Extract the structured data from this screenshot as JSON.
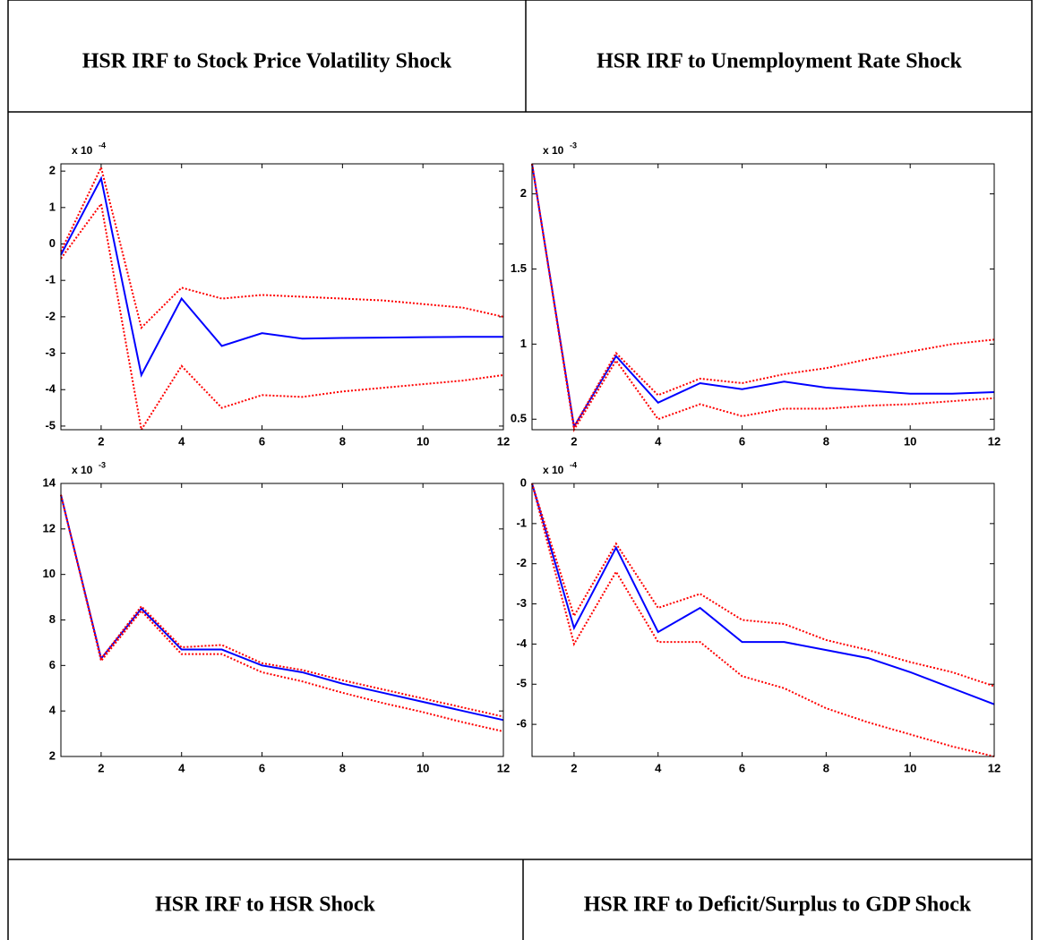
{
  "table": {
    "top_headers": [
      "HSR IRF to Stock Price Volatility Shock",
      "HSR IRF to Unemployment Rate Shock"
    ],
    "bottom_headers": [
      "HSR IRF to HSR Shock",
      "HSR IRF to Deficit/Surplus to GDP Shock"
    ]
  },
  "chart_data": [
    {
      "type": "line",
      "y_scale_base": "x 10",
      "y_scale_exponent": "-4",
      "x": [
        1,
        2,
        3,
        4,
        5,
        6,
        7,
        8,
        9,
        10,
        11,
        12
      ],
      "xlim": [
        1,
        12
      ],
      "xticks": [
        2,
        4,
        6,
        8,
        10,
        12
      ],
      "ylim": [
        -5.1,
        2.2
      ],
      "yticks": [
        -5,
        -4,
        -3,
        -2,
        -1,
        0,
        1,
        2
      ],
      "series": [
        {
          "color": "#0000ff",
          "style": "solid",
          "values": [
            -0.3,
            1.8,
            -3.6,
            -1.5,
            -2.8,
            -2.45,
            -2.6,
            -2.58,
            -2.57,
            -2.56,
            -2.55,
            -2.55
          ]
        },
        {
          "color": "#ff0000",
          "style": "dotted",
          "values": [
            -0.2,
            2.1,
            -2.3,
            -1.2,
            -1.5,
            -1.4,
            -1.45,
            -1.5,
            -1.55,
            -1.65,
            -1.75,
            -2.0
          ]
        },
        {
          "color": "#ff0000",
          "style": "dotted",
          "values": [
            -0.4,
            1.1,
            -5.1,
            -3.35,
            -4.5,
            -4.15,
            -4.2,
            -4.05,
            -3.95,
            -3.85,
            -3.75,
            -3.6
          ]
        }
      ]
    },
    {
      "type": "line",
      "y_scale_base": "x 10",
      "y_scale_exponent": "-3",
      "x": [
        1,
        2,
        3,
        4,
        5,
        6,
        7,
        8,
        9,
        10,
        11,
        12
      ],
      "xlim": [
        1,
        12
      ],
      "xticks": [
        2,
        4,
        6,
        8,
        10,
        12
      ],
      "ylim": [
        0.43,
        2.2
      ],
      "yticks": [
        0.5,
        1,
        1.5,
        2
      ],
      "series": [
        {
          "color": "#0000ff",
          "style": "solid",
          "values": [
            2.2,
            0.45,
            0.92,
            0.61,
            0.74,
            0.7,
            0.75,
            0.71,
            0.69,
            0.67,
            0.67,
            0.68
          ]
        },
        {
          "color": "#ff0000",
          "style": "dotted",
          "values": [
            2.2,
            0.45,
            0.94,
            0.66,
            0.77,
            0.74,
            0.8,
            0.84,
            0.9,
            0.95,
            1.0,
            1.03
          ]
        },
        {
          "color": "#ff0000",
          "style": "dotted",
          "values": [
            2.2,
            0.43,
            0.89,
            0.5,
            0.6,
            0.52,
            0.57,
            0.57,
            0.59,
            0.6,
            0.62,
            0.64
          ]
        }
      ]
    },
    {
      "type": "line",
      "y_scale_base": "x 10",
      "y_scale_exponent": "-3",
      "x": [
        1,
        2,
        3,
        4,
        5,
        6,
        7,
        8,
        9,
        10,
        11,
        12
      ],
      "xlim": [
        1,
        12
      ],
      "xticks": [
        2,
        4,
        6,
        8,
        10,
        12
      ],
      "ylim": [
        2,
        14
      ],
      "yticks": [
        2,
        4,
        6,
        8,
        10,
        12,
        14
      ],
      "series": [
        {
          "color": "#0000ff",
          "style": "solid",
          "values": [
            13.5,
            6.3,
            8.5,
            6.7,
            6.7,
            6.0,
            5.7,
            5.2,
            4.8,
            4.4,
            4.0,
            3.6
          ]
        },
        {
          "color": "#ff0000",
          "style": "dotted",
          "values": [
            13.5,
            6.3,
            8.6,
            6.8,
            6.9,
            6.1,
            5.8,
            5.35,
            4.95,
            4.55,
            4.15,
            3.75
          ]
        },
        {
          "color": "#ff0000",
          "style": "dotted",
          "values": [
            13.5,
            6.2,
            8.4,
            6.5,
            6.5,
            5.7,
            5.3,
            4.8,
            4.35,
            3.95,
            3.5,
            3.1
          ]
        }
      ]
    },
    {
      "type": "line",
      "y_scale_base": "x 10",
      "y_scale_exponent": "-4",
      "x": [
        1,
        2,
        3,
        4,
        5,
        6,
        7,
        8,
        9,
        10,
        11,
        12
      ],
      "xlim": [
        1,
        12
      ],
      "xticks": [
        2,
        4,
        6,
        8,
        10,
        12
      ],
      "ylim": [
        -6.8,
        0
      ],
      "yticks": [
        -6,
        -5,
        -4,
        -3,
        -2,
        -1,
        0
      ],
      "series": [
        {
          "color": "#0000ff",
          "style": "solid",
          "values": [
            0,
            -3.6,
            -1.6,
            -3.7,
            -3.1,
            -3.95,
            -3.95,
            -4.15,
            -4.35,
            -4.7,
            -5.1,
            -5.5
          ]
        },
        {
          "color": "#ff0000",
          "style": "dotted",
          "values": [
            0,
            -3.3,
            -1.5,
            -3.1,
            -2.75,
            -3.4,
            -3.5,
            -3.9,
            -4.15,
            -4.45,
            -4.7,
            -5.05
          ]
        },
        {
          "color": "#ff0000",
          "style": "dotted",
          "values": [
            0,
            -4.0,
            -2.2,
            -3.95,
            -3.95,
            -4.8,
            -5.1,
            -5.6,
            -5.95,
            -6.25,
            -6.55,
            -6.8
          ]
        }
      ]
    }
  ]
}
